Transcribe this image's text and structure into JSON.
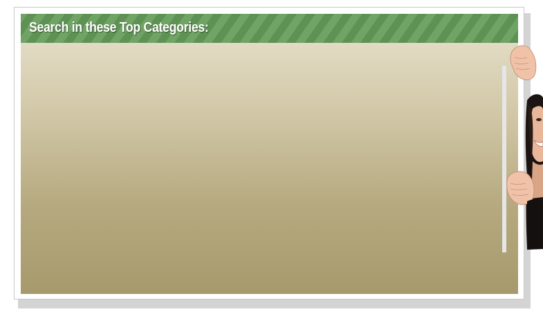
{
  "header": {
    "title": "Search in these Top Categories:"
  },
  "content": {
    "categories": []
  },
  "illustration": {
    "name": "peeking-woman-illustration"
  },
  "colors": {
    "header_stripe_dark": "#5e9255",
    "header_stripe_light": "#70a465",
    "panel_top": "#e2dbc3",
    "panel_bottom": "#a69a6d"
  }
}
